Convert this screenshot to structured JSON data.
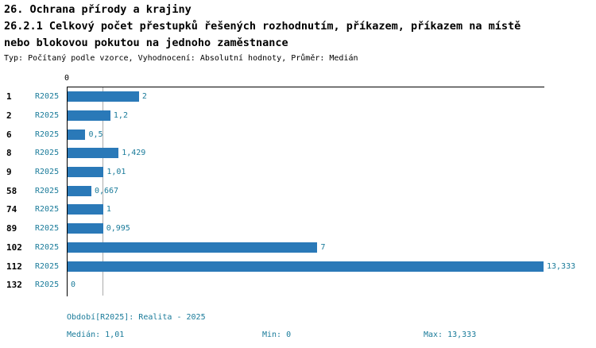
{
  "title": {
    "line1": "26. Ochrana přírody a krajiny",
    "line2": "26.2.1 Celkový počet přestupků řešených rozhodnutím, příkazem, příkazem na místě",
    "line3": "nebo blokovou pokutou na jednoho zaměstnance",
    "subtitle": "Typ: Počítaný podle vzorce, Vyhodnocení: Absolutní hodnoty, Průměr: Medián"
  },
  "colors": {
    "bar": "#2a79b8",
    "accent_text": "#1a7b9a"
  },
  "chart_data": {
    "type": "bar",
    "orientation": "horizontal",
    "series_label": "R2025",
    "categories": [
      "1",
      "2",
      "6",
      "8",
      "9",
      "58",
      "74",
      "89",
      "102",
      "112",
      "132"
    ],
    "values": [
      2,
      1.2,
      0.5,
      1.429,
      1.01,
      0.667,
      1,
      0.995,
      7,
      13.333,
      0
    ],
    "value_labels": [
      "2",
      "1,2",
      "0,5",
      "1,429",
      "1,01",
      "0,667",
      "1",
      "0,995",
      "7",
      "13,333",
      "0"
    ],
    "xlim": [
      0,
      13.333
    ],
    "x_tick_labels": [
      "0"
    ],
    "median_line": 1.01,
    "grid": false,
    "legend_position": "none"
  },
  "footer": {
    "period": "Období[R2025]: Realita - 2025",
    "median": "Medián: 1,01",
    "min": "Min: 0",
    "max": "Max: 13,333"
  }
}
